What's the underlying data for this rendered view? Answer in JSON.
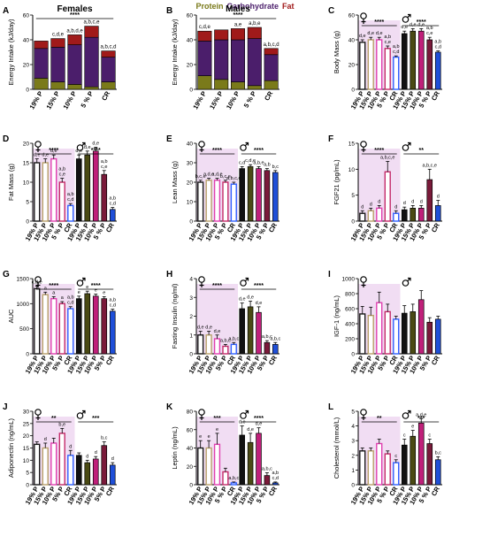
{
  "legend": {
    "items": [
      {
        "label": "Protein",
        "color": "#7a7a1a"
      },
      {
        "label": "Carbohydrate",
        "color": "#4b1e6b"
      },
      {
        "label": "Fat",
        "color": "#a01a1a"
      }
    ]
  },
  "colors": {
    "female_fills": [
      "#ffffff",
      "#ffffff",
      "#ffffff",
      "#ffffff",
      "#ffffff"
    ],
    "female_edges": [
      "#1a1a1a",
      "#b8a06a",
      "#e040b0",
      "#c42a6a",
      "#3060ff"
    ],
    "male_fills": [
      "#111111",
      "#4a4a14",
      "#c0207a",
      "#7a1a3a",
      "#1f4fd8"
    ],
    "female_shade": "#f1ddf3",
    "protein": "#7a7a1a",
    "carbohydrate": "#4b1e6b",
    "fat": "#a01a1a"
  },
  "chart_data": [
    {
      "panel": "A",
      "type": "bar",
      "stacked": true,
      "title": "Females",
      "ylabel": "Energy Intake (kJ/day)",
      "ylim": [
        0,
        60
      ],
      "yticks": [
        0,
        20,
        40,
        60
      ],
      "categories": [
        "19% P",
        "15% P",
        "10% P",
        "5 % P",
        "CR"
      ],
      "series": [
        {
          "name": "Protein",
          "values": [
            9,
            6,
            4,
            2,
            6
          ]
        },
        {
          "name": "Carbohydrate",
          "values": [
            24,
            28,
            32,
            40,
            20
          ]
        },
        {
          "name": "Fat",
          "values": [
            6,
            7,
            8,
            9,
            5
          ]
        }
      ],
      "annotations": [
        "",
        "c,d,e",
        "a,b,d,e",
        "a,b,c,e",
        "a,b,c,d"
      ],
      "sig": "****"
    },
    {
      "panel": "B",
      "type": "bar",
      "stacked": true,
      "title": "Males",
      "ylabel": "Energy Intake (kJ/day)",
      "ylim": [
        0,
        60
      ],
      "yticks": [
        0,
        20,
        40,
        60
      ],
      "categories": [
        "19% P",
        "15% P",
        "10% P",
        "5 % P",
        "CR"
      ],
      "series": [
        {
          "name": "Protein",
          "values": [
            11,
            8,
            6,
            3,
            7
          ]
        },
        {
          "name": "Carbohydrate",
          "values": [
            28,
            32,
            34,
            38,
            21
          ]
        },
        {
          "name": "Fat",
          "values": [
            8,
            8,
            9,
            9,
            5
          ]
        }
      ],
      "annotations": [
        "c,d,e",
        "",
        "a,e",
        "a,b,e",
        "a,b,c,d"
      ],
      "sig": "****"
    },
    {
      "panel": "C",
      "type": "bar",
      "ylabel": "Body Mass (g)",
      "ylim": [
        0,
        60
      ],
      "yticks": [
        0,
        20,
        40,
        60
      ],
      "categories": [
        "19% P",
        "15% P",
        "10% P",
        "5 % P",
        "CR",
        "19% P",
        "15% P",
        "10% P",
        "5 % P",
        "CR"
      ],
      "values": [
        38,
        40,
        40,
        33,
        26,
        45,
        47,
        47,
        40,
        30
      ],
      "errors": [
        2,
        2,
        2,
        2,
        1,
        2,
        2,
        2,
        2,
        1
      ],
      "annotations": [
        "d,e",
        "d,e",
        "d,e",
        "a,b c,e",
        "a,b c,d",
        "d,e",
        "d,e",
        "d,e",
        "a,b c,e",
        "a,b c,d"
      ],
      "sig_f": "****",
      "sig_m": "****"
    },
    {
      "panel": "D",
      "type": "bar",
      "ylabel": "Fat Mass (g)",
      "ylim": [
        0,
        20
      ],
      "yticks": [
        0,
        5,
        10,
        15,
        20
      ],
      "categories": [
        "19% P",
        "15% P",
        "10% P",
        "5 % P",
        "CR",
        "19% P",
        "15% P",
        "10% P",
        "5 % P",
        "CR"
      ],
      "values": [
        15,
        15,
        16,
        10,
        4,
        16,
        17,
        18,
        12,
        3
      ],
      "errors": [
        1,
        1,
        1,
        1,
        0.5,
        1,
        1,
        1,
        1,
        0.5
      ],
      "annotations": [
        "d,e",
        "d,e",
        "d,e",
        "a,b c,e",
        "a,b c,d",
        "d,e",
        "d,e",
        "d,e",
        "a,b c,e",
        "a,b c,d"
      ],
      "sig_f": "****",
      "sig_m": "****"
    },
    {
      "panel": "E",
      "type": "bar",
      "ylabel": "Lean Mass (g)",
      "ylim": [
        0,
        40
      ],
      "yticks": [
        0,
        10,
        20,
        30,
        40
      ],
      "categories": [
        "19% P",
        "15% P",
        "10% P",
        "5 % P",
        "CR",
        "19% P",
        "15% P",
        "10% P",
        "5 % P",
        "CR"
      ],
      "values": [
        20,
        21,
        21,
        20,
        19,
        27,
        28,
        27,
        26,
        25
      ],
      "errors": [
        1,
        1,
        1,
        1,
        1,
        1,
        1,
        1,
        1,
        1
      ],
      "annotations": [
        "b,c,e",
        "a,d,e",
        "a,d,e",
        "b,c,e",
        "a,b,c,d",
        "c,d",
        "c,d,e",
        "a,b,e",
        "a,b",
        "b,c"
      ],
      "sig_f": "****",
      "sig_m": "****"
    },
    {
      "panel": "F",
      "type": "bar",
      "ylabel": "FGF21 (pg/mL)",
      "ylim": [
        0,
        15
      ],
      "yticks": [
        0,
        5,
        10,
        15
      ],
      "categories": [
        "19% P",
        "15% P",
        "10% P",
        "5 % P",
        "CR",
        "19% P",
        "15% P",
        "10% P",
        "5 % P",
        "CR"
      ],
      "values": [
        1.5,
        2,
        2.5,
        9.5,
        1.5,
        2.2,
        2.5,
        2.5,
        8,
        3
      ],
      "errors": [
        0.5,
        0.5,
        0.5,
        2,
        0.5,
        0.5,
        0.5,
        0.5,
        2,
        1
      ],
      "annotations": [
        "d",
        "d",
        "d",
        "a,b,c,e",
        "d",
        "d",
        "d",
        "d",
        "a,b,c,e",
        "d"
      ],
      "sig_f": "****",
      "sig_m": "**"
    },
    {
      "panel": "G",
      "type": "bar",
      "ylabel": "AUC",
      "ylim": [
        0,
        1500
      ],
      "yticks": [
        0,
        500,
        1000,
        1500
      ],
      "categories": [
        "19% P",
        "15% P",
        "10% P",
        "5% P",
        "CR",
        "19% P",
        "15% P",
        "10% P",
        "5% P",
        "CR"
      ],
      "values": [
        1300,
        1180,
        1100,
        1000,
        900,
        1100,
        1200,
        1150,
        1100,
        850
      ],
      "errors": [
        50,
        50,
        40,
        40,
        40,
        50,
        50,
        40,
        40,
        40
      ],
      "annotations": [
        "c,d,e",
        "a",
        "a",
        "a",
        "a,b c,d",
        "e",
        "e",
        "e",
        "e",
        "a,b c,d"
      ],
      "sig_f": "****",
      "sig_m": "****"
    },
    {
      "panel": "H",
      "type": "bar",
      "ylabel": "Fasting Insulin (ng/ml)",
      "ylim": [
        0,
        4
      ],
      "yticks": [
        0,
        1,
        2,
        3,
        4
      ],
      "categories": [
        "19% P",
        "15% P",
        "10% P",
        "5% P",
        "CR",
        "19% P",
        "15% P",
        "10% P",
        "5% P",
        "CR"
      ],
      "values": [
        1.0,
        1.0,
        0.8,
        0.4,
        0.5,
        2.4,
        2.5,
        2.2,
        0.6,
        0.5
      ],
      "errors": [
        0.2,
        0.2,
        0.2,
        0.1,
        0.1,
        0.3,
        0.3,
        0.3,
        0.1,
        0.1
      ],
      "annotations": [
        "d,e",
        "d,e",
        "d,e",
        "a,b,c",
        "a,b,c",
        "d,e",
        "d,e",
        "d,e",
        "a,b,c",
        "a,b,c"
      ],
      "sig_f": "****",
      "sig_m": "****"
    },
    {
      "panel": "I",
      "type": "bar",
      "ylabel": "IGF-1 (ng/mL)",
      "ylim": [
        0,
        1000
      ],
      "yticks": [
        0,
        200,
        400,
        600,
        800,
        1000
      ],
      "categories": [
        "19% P",
        "15% P",
        "10% P",
        "5% P",
        "CR",
        "19% P",
        "15% P",
        "10% P",
        "5% P",
        "CR"
      ],
      "values": [
        530,
        510,
        680,
        560,
        460,
        540,
        560,
        720,
        420,
        460
      ],
      "errors": [
        100,
        110,
        140,
        100,
        40,
        100,
        100,
        120,
        60,
        40
      ],
      "annotations": [
        "",
        "",
        "",
        "",
        "",
        "",
        "",
        "",
        "",
        ""
      ],
      "sig_f": "",
      "sig_m": ""
    },
    {
      "panel": "J",
      "type": "bar",
      "ylabel": "Adiponectin (ng/mL)",
      "ylim": [
        0,
        30
      ],
      "yticks": [
        0,
        5,
        10,
        15,
        20,
        25,
        30
      ],
      "categories": [
        "19% P",
        "15% P",
        "10% P",
        "5% P",
        "CR",
        "19% P",
        "15% P",
        "10% P",
        "5% P",
        "CR"
      ],
      "values": [
        16.5,
        15,
        17,
        21,
        12,
        12,
        9,
        10.5,
        16,
        8
      ],
      "errors": [
        1,
        2,
        2,
        2,
        2,
        1,
        1,
        1,
        1.5,
        1
      ],
      "annotations": [
        "",
        "d",
        "",
        "b,e",
        "d",
        "",
        "d",
        "d",
        "b,c",
        "d"
      ],
      "sig_f": "**",
      "sig_m": "***"
    },
    {
      "panel": "K",
      "type": "bar",
      "ylabel": "Leptin (ng/mL)",
      "ylim": [
        0,
        80
      ],
      "yticks": [
        0,
        20,
        40,
        60,
        80
      ],
      "categories": [
        "19% P",
        "15% P",
        "10% P",
        "5 % P",
        "CR",
        "19% P",
        "15% P",
        "10% P",
        "5 % P",
        "CR"
      ],
      "values": [
        40,
        40,
        44,
        14,
        2,
        54,
        46,
        56,
        10,
        2
      ],
      "errors": [
        8,
        8,
        12,
        4,
        1,
        10,
        10,
        6,
        3,
        1
      ],
      "annotations": [
        "e",
        "e",
        "e",
        "",
        "a,b,c",
        "d,e",
        "d,e",
        "d,e",
        "a,b,c",
        "a,b c,d"
      ],
      "sig_f": "***",
      "sig_m": "****"
    },
    {
      "panel": "L",
      "type": "bar",
      "ylabel": "Cholesterol (mmol/L)",
      "ylim": [
        0,
        5
      ],
      "yticks": [
        0,
        1,
        2,
        3,
        4,
        5
      ],
      "categories": [
        "19% P",
        "15% P",
        "10% P",
        "5 % P",
        "CR",
        "19% P",
        "15% P",
        "10% P",
        "5 % P",
        "CR"
      ],
      "values": [
        2.3,
        2.3,
        2.8,
        2.1,
        1.5,
        2.7,
        3.3,
        4.2,
        2.8,
        1.7
      ],
      "errors": [
        0.2,
        0.2,
        0.3,
        0.2,
        0.2,
        0.4,
        0.4,
        0.3,
        0.3,
        0.2
      ],
      "annotations": [
        "",
        "",
        "",
        "",
        "c",
        "c",
        "e",
        "a,d,e",
        "c",
        "b,c"
      ],
      "sig_f": "**",
      "sig_m": "***"
    }
  ]
}
